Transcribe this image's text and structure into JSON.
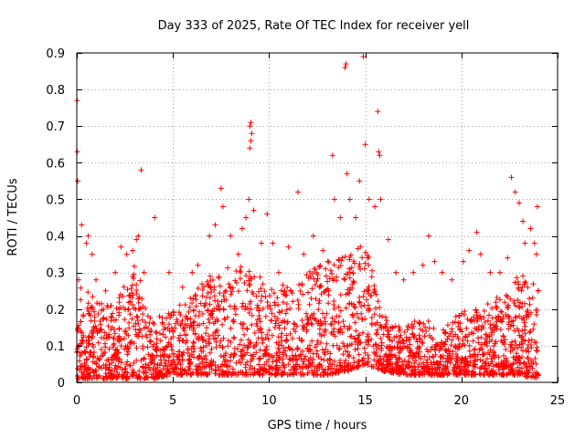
{
  "chart_data": {
    "type": "scatter",
    "title": "Day 333 of 2025, Rate Of TEC Index for receiver yell",
    "xlabel": "GPS time / hours",
    "ylabel": "ROTI / TECUs",
    "xlim": [
      0,
      25
    ],
    "ylim": [
      0,
      0.9
    ],
    "x_ticks": [
      0,
      5,
      10,
      15,
      20,
      25
    ],
    "y_ticks": [
      0,
      0.1,
      0.2,
      0.3,
      0.4,
      0.5,
      0.6,
      0.7,
      0.8,
      0.9
    ],
    "x_tick_labels": [
      "0",
      "5",
      "10",
      "15",
      "20",
      "25"
    ],
    "y_tick_labels": [
      "0",
      "0.1",
      "0.2",
      "0.3",
      "0.4",
      "0.5",
      "0.6",
      "0.7",
      "0.8",
      "0.9"
    ],
    "grid": true,
    "marker": "+",
    "series": [
      {
        "name": "ROTI",
        "color": "#ff0000",
        "points": [
          [
            0.02,
            0.77
          ],
          [
            0.03,
            0.63
          ],
          [
            0.05,
            0.55
          ],
          [
            0.1,
            0.28
          ],
          [
            0.25,
            0.43
          ],
          [
            0.5,
            0.38
          ],
          [
            0.6,
            0.4
          ],
          [
            0.8,
            0.35
          ],
          [
            1.0,
            0.28
          ],
          [
            1.5,
            0.25
          ],
          [
            2.0,
            0.3
          ],
          [
            2.3,
            0.37
          ],
          [
            2.6,
            0.35
          ],
          [
            2.9,
            0.36
          ],
          [
            3.1,
            0.39
          ],
          [
            3.2,
            0.4
          ],
          [
            3.35,
            0.58
          ],
          [
            3.5,
            0.3
          ],
          [
            4.05,
            0.45
          ],
          [
            4.3,
            0.18
          ],
          [
            4.8,
            0.3
          ],
          [
            5.5,
            0.26
          ],
          [
            6.0,
            0.3
          ],
          [
            6.3,
            0.32
          ],
          [
            6.9,
            0.4
          ],
          [
            7.2,
            0.43
          ],
          [
            7.5,
            0.53
          ],
          [
            7.6,
            0.48
          ],
          [
            8.0,
            0.4
          ],
          [
            8.4,
            0.35
          ],
          [
            8.6,
            0.42
          ],
          [
            8.8,
            0.45
          ],
          [
            8.95,
            0.5
          ],
          [
            9.0,
            0.7
          ],
          [
            9.05,
            0.71
          ],
          [
            9.1,
            0.68
          ],
          [
            9.05,
            0.66
          ],
          [
            9.0,
            0.64
          ],
          [
            9.2,
            0.47
          ],
          [
            9.6,
            0.38
          ],
          [
            9.9,
            0.46
          ],
          [
            10.2,
            0.38
          ],
          [
            10.5,
            0.3
          ],
          [
            11.0,
            0.37
          ],
          [
            11.5,
            0.52
          ],
          [
            11.8,
            0.35
          ],
          [
            12.3,
            0.4
          ],
          [
            12.8,
            0.36
          ],
          [
            13.3,
            0.62
          ],
          [
            13.4,
            0.5
          ],
          [
            13.7,
            0.45
          ],
          [
            13.95,
            0.86
          ],
          [
            14.0,
            0.87
          ],
          [
            14.05,
            0.57
          ],
          [
            14.2,
            0.5
          ],
          [
            14.5,
            0.45
          ],
          [
            14.7,
            0.55
          ],
          [
            14.9,
            0.89
          ],
          [
            15.0,
            0.65
          ],
          [
            15.2,
            0.5
          ],
          [
            15.5,
            0.48
          ],
          [
            15.65,
            0.74
          ],
          [
            15.7,
            0.63
          ],
          [
            15.75,
            0.62
          ],
          [
            15.8,
            0.5
          ],
          [
            16.2,
            0.39
          ],
          [
            16.6,
            0.3
          ],
          [
            17.0,
            0.28
          ],
          [
            17.5,
            0.3
          ],
          [
            18.0,
            0.32
          ],
          [
            18.3,
            0.4
          ],
          [
            18.6,
            0.33
          ],
          [
            19.0,
            0.3
          ],
          [
            19.5,
            0.28
          ],
          [
            20.1,
            0.33
          ],
          [
            20.4,
            0.36
          ],
          [
            20.8,
            0.41
          ],
          [
            21.0,
            0.35
          ],
          [
            21.5,
            0.3
          ],
          [
            22.0,
            0.3
          ],
          [
            22.4,
            0.34
          ],
          [
            22.6,
            0.56
          ],
          [
            22.8,
            0.52
          ],
          [
            23.0,
            0.49
          ],
          [
            23.2,
            0.44
          ],
          [
            23.3,
            0.38
          ],
          [
            23.6,
            0.42
          ],
          [
            23.8,
            0.38
          ],
          [
            23.9,
            0.35
          ],
          [
            23.95,
            0.48
          ],
          [
            24.0,
            0.25
          ]
        ],
        "dense_cloud_envelope": {
          "note": "approximate density band of remaining samples",
          "x": [
            0,
            1,
            2,
            3,
            4,
            5,
            6,
            7,
            8,
            9,
            10,
            11,
            12,
            13,
            14,
            15,
            16,
            17,
            18,
            19,
            20,
            21,
            22,
            23,
            24
          ],
          "upper": [
            0.3,
            0.22,
            0.22,
            0.33,
            0.16,
            0.2,
            0.24,
            0.3,
            0.33,
            0.32,
            0.26,
            0.27,
            0.3,
            0.33,
            0.36,
            0.38,
            0.18,
            0.15,
            0.18,
            0.14,
            0.2,
            0.2,
            0.24,
            0.3,
            0.28
          ],
          "lower": [
            0.01,
            0.01,
            0.01,
            0.01,
            0.01,
            0.02,
            0.02,
            0.02,
            0.02,
            0.02,
            0.02,
            0.02,
            0.02,
            0.02,
            0.03,
            0.05,
            0.03,
            0.02,
            0.02,
            0.02,
            0.02,
            0.02,
            0.02,
            0.02,
            0.01
          ]
        }
      }
    ]
  }
}
